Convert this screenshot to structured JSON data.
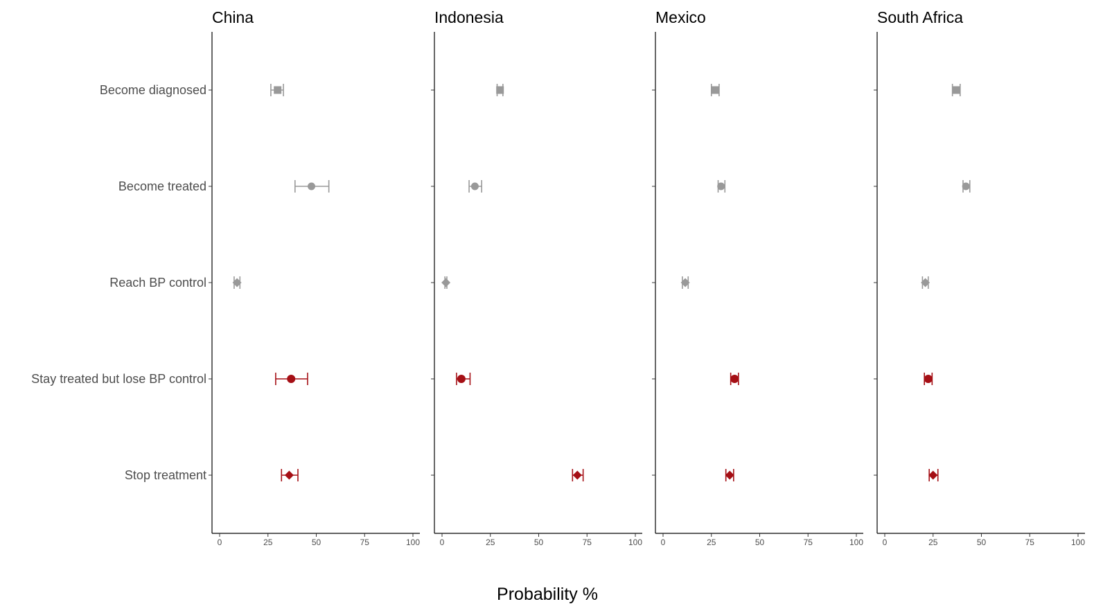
{
  "chart_data": {
    "type": "scatter",
    "variant": "faceted dot plot with error bars",
    "xlabel": "Probability %",
    "xlim": [
      0,
      100
    ],
    "x_ticks": [
      0,
      25,
      50,
      75,
      100
    ],
    "grid": false,
    "categories": [
      "Become diagnosed",
      "Become treated",
      "Reach BP control",
      "Stay treated but lose BP control",
      "Stop treatment"
    ],
    "colors": {
      "grey": "#999999",
      "red": "#a50f15",
      "axis": "#000000",
      "text": "#4d4d4d"
    },
    "marker_by_category": [
      "square",
      "circle",
      "diamond",
      "circle",
      "diamond"
    ],
    "color_by_category": [
      "grey",
      "grey",
      "grey",
      "red",
      "red"
    ],
    "panels": [
      {
        "title": "China",
        "points": [
          {
            "category": "Become diagnosed",
            "value": 30,
            "lower": 26.5,
            "upper": 33
          },
          {
            "category": "Become treated",
            "value": 47.5,
            "lower": 39,
            "upper": 56.5
          },
          {
            "category": "Reach BP control",
            "value": 9,
            "lower": 7.5,
            "upper": 10.5
          },
          {
            "category": "Stay treated but lose BP control",
            "value": 37,
            "lower": 29,
            "upper": 45.5
          },
          {
            "category": "Stop treatment",
            "value": 36,
            "lower": 32,
            "upper": 40.5
          }
        ]
      },
      {
        "title": "Indonesia",
        "points": [
          {
            "category": "Become diagnosed",
            "value": 30,
            "lower": 28.5,
            "upper": 31.5
          },
          {
            "category": "Become treated",
            "value": 17,
            "lower": 14,
            "upper": 20.5
          },
          {
            "category": "Reach BP control",
            "value": 2,
            "lower": 1.5,
            "upper": 2.5
          },
          {
            "category": "Stay treated but lose BP control",
            "value": 10,
            "lower": 7.5,
            "upper": 14.5
          },
          {
            "category": "Stop treatment",
            "value": 70,
            "lower": 67.5,
            "upper": 73
          }
        ]
      },
      {
        "title": "Mexico",
        "points": [
          {
            "category": "Become diagnosed",
            "value": 27,
            "lower": 25,
            "upper": 29
          },
          {
            "category": "Become treated",
            "value": 30,
            "lower": 28.5,
            "upper": 32
          },
          {
            "category": "Reach BP control",
            "value": 11.5,
            "lower": 10,
            "upper": 13
          },
          {
            "category": "Stay treated but lose BP control",
            "value": 37,
            "lower": 35,
            "upper": 39
          },
          {
            "category": "Stop treatment",
            "value": 34.5,
            "lower": 32.5,
            "upper": 36.5
          }
        ]
      },
      {
        "title": "South Africa",
        "points": [
          {
            "category": "Become diagnosed",
            "value": 37,
            "lower": 35,
            "upper": 39
          },
          {
            "category": "Become treated",
            "value": 42,
            "lower": 40.5,
            "upper": 44
          },
          {
            "category": "Reach BP control",
            "value": 21,
            "lower": 19.5,
            "upper": 22.5
          },
          {
            "category": "Stay treated but lose BP control",
            "value": 22.5,
            "lower": 20.5,
            "upper": 24.5
          },
          {
            "category": "Stop treatment",
            "value": 25,
            "lower": 23,
            "upper": 27.5
          }
        ]
      }
    ]
  }
}
